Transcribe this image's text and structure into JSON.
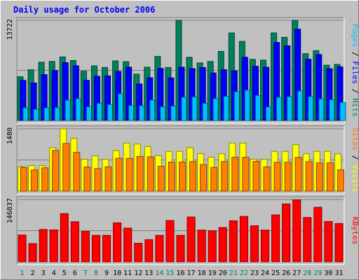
{
  "chart_data": {
    "type": "bar",
    "title": "Daily usage for October 2006",
    "categories": [
      "1",
      "2",
      "3",
      "4",
      "5",
      "6",
      "7",
      "8",
      "9",
      "10",
      "11",
      "12",
      "13",
      "14",
      "15",
      "16",
      "17",
      "18",
      "19",
      "20",
      "21",
      "22",
      "23",
      "24",
      "25",
      "26",
      "27",
      "28",
      "29",
      "30",
      "31"
    ],
    "weekend_days": [
      "1",
      "7",
      "8",
      "14",
      "15",
      "21",
      "22",
      "28",
      "29"
    ],
    "panels": [
      {
        "ylabel_parts": [
          {
            "text": "Pages",
            "color": "#00c0ff"
          },
          {
            "text": " / ",
            "color": "#000000"
          },
          {
            "text": "Files",
            "color": "#0000ff"
          },
          {
            "text": " / ",
            "color": "#000000"
          },
          {
            "text": "Hits",
            "color": "#00805c"
          }
        ],
        "max_label": "13722",
        "ylim": [
          0,
          13722
        ],
        "series": [
          {
            "name": "Hits",
            "color": "#00805c",
            "values": [
              5983,
              6941,
              7977,
              8089,
              8705,
              8209,
              6741,
              7481,
              7257,
              8161,
              8049,
              6333,
              7289,
              8773,
              7257,
              13722,
              8653,
              7881,
              8077,
              9461,
              11989,
              10829,
              8365,
              8261,
              11989,
              11389,
              13722,
              9153,
              9565,
              7569,
              7677
            ]
          },
          {
            "name": "Files",
            "color": "#0000ff",
            "values": [
              5489,
              5138,
              6269,
              6837,
              7921,
              7489,
              5489,
              6049,
              6105,
              6709,
              7297,
              4993,
              5849,
              7129,
              5821,
              7293,
              7105,
              7257,
              6509,
              6949,
              6805,
              8653,
              7417,
              7289,
              10681,
              10229,
              12513,
              8377,
              9029,
              7089,
              7345
            ]
          },
          {
            "name": "Pages",
            "color": "#00c0ff",
            "values": [
              1713,
              1525,
              1713,
              1737,
              2757,
              2981,
              1853,
              2341,
              2169,
              3653,
              2025,
              2009,
              2769,
              1865,
              1977,
              3173,
              3209,
              2341,
              2989,
              3289,
              3925,
              4145,
              3421,
              1837,
              3141,
              3245,
              4025,
              3249,
              2921,
              2829,
              2465
            ]
          }
        ]
      },
      {
        "ylabel_parts": [
          {
            "text": "Sites",
            "color": "#ff8000"
          },
          {
            "text": " / ",
            "color": "#000000"
          },
          {
            "text": "Visits",
            "color": "#ffff00"
          }
        ],
        "max_label": "1480",
        "ylim": [
          0,
          1480
        ],
        "series": [
          {
            "name": "Visits",
            "color": "#ffff00",
            "values": [
              578,
              606,
              606,
              1030,
              1480,
              1250,
              758,
              836,
              758,
              962,
              1142,
              1118,
              1060,
              842,
              943,
              943,
              1030,
              890,
              805,
              886,
              1142,
              1142,
              758,
              758,
              943,
              943,
              1102,
              886,
              943,
              943,
              886
            ]
          },
          {
            "name": "Sites",
            "color": "#ff8000",
            "values": [
              564,
              501,
              553,
              967,
              1132,
              920,
              574,
              535,
              578,
              779,
              777,
              824,
              815,
              590,
              690,
              690,
              700,
              631,
              564,
              701,
              805,
              805,
              706,
              577,
              685,
              685,
              801,
              701,
              671,
              671,
              505
            ]
          }
        ]
      },
      {
        "ylabel_parts": [
          {
            "text": "KBytes",
            "color": "#ff0000"
          }
        ],
        "max_label": "146837",
        "ylim": [
          0,
          146837
        ],
        "series": [
          {
            "name": "KBytes",
            "color": "#ff0000",
            "values": [
              63050,
              42858,
              76185,
              75177,
              113550,
              94356,
              71649,
              62292,
              62292,
              91845,
              79353,
              43611,
              52196,
              62292,
              97140,
              62292,
              105477,
              74673,
              73161,
              80676,
              96636,
              106968,
              84879,
              74673,
              110527,
              136266,
              145829,
              104469,
              128475,
              95004,
              90093
            ]
          }
        ]
      }
    ]
  }
}
